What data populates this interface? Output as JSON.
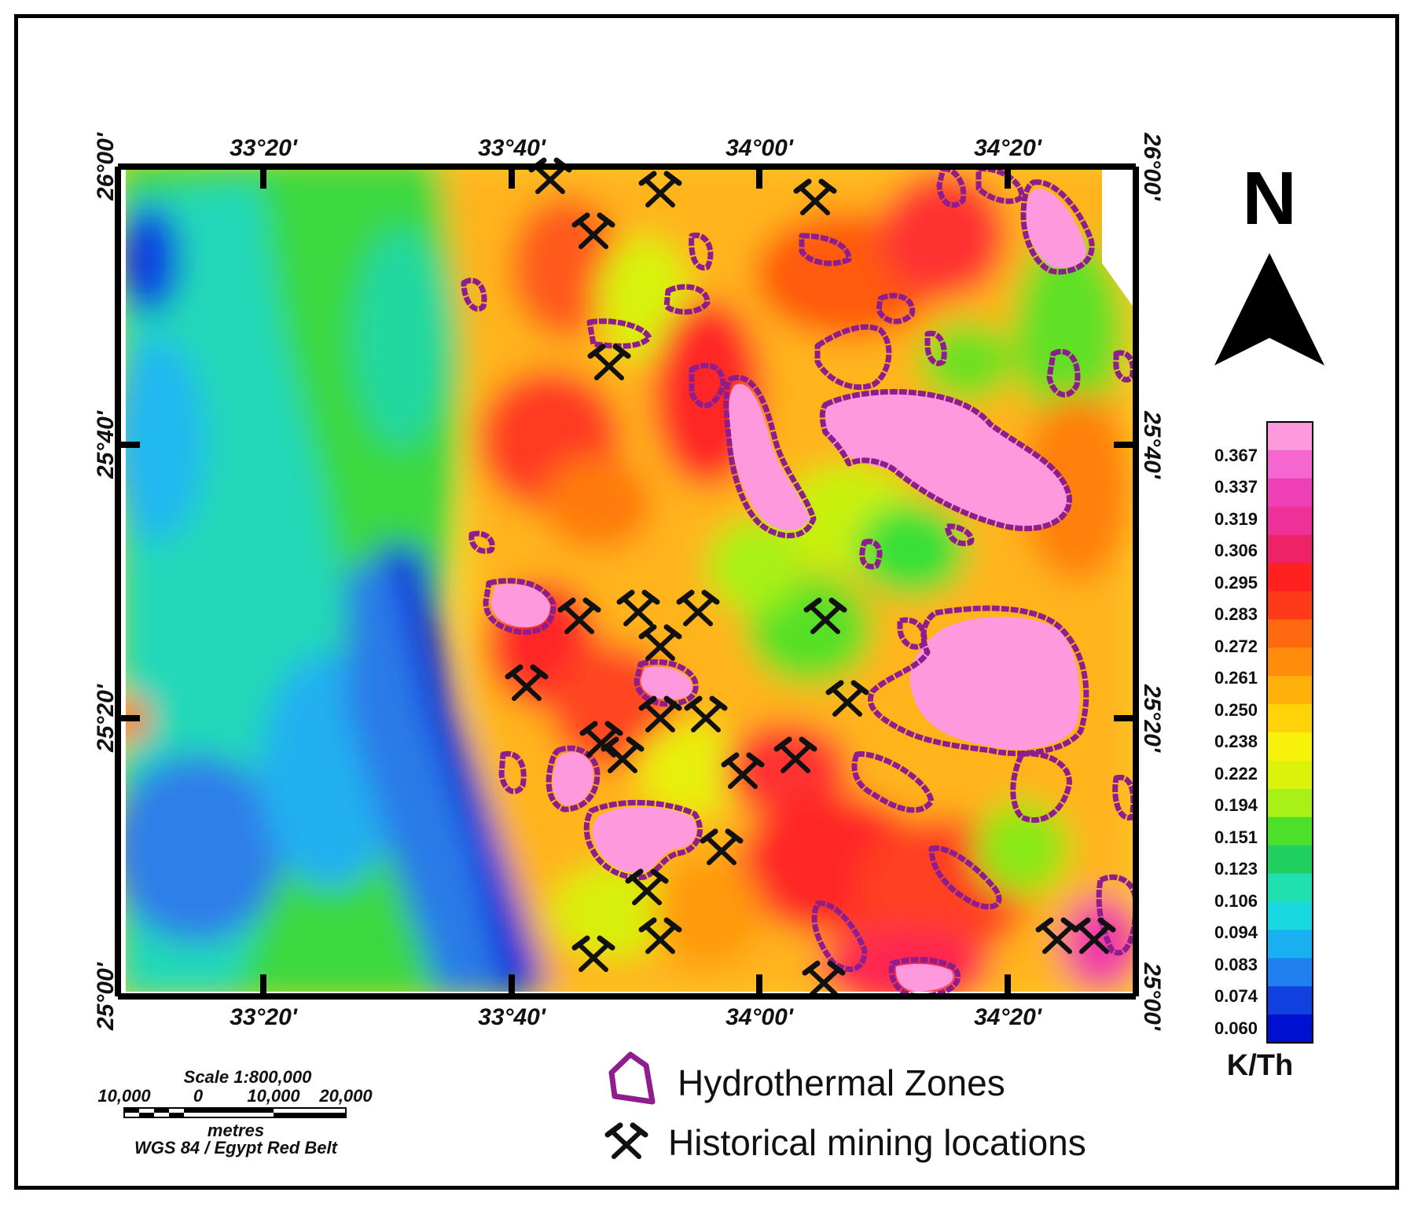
{
  "map": {
    "lon_ticks": [
      "33°20'",
      "33°40'",
      "34°00'",
      "34°20'"
    ],
    "lat_ticks": [
      "26°00'",
      "25°40'",
      "25°20'",
      "25°00'"
    ]
  },
  "north_arrow": {
    "label": "N"
  },
  "colorbar": {
    "title": "K/Th",
    "values": [
      "0.367",
      "0.337",
      "0.319",
      "0.306",
      "0.295",
      "0.283",
      "0.272",
      "0.261",
      "0.250",
      "0.238",
      "0.222",
      "0.194",
      "0.151",
      "0.123",
      "0.106",
      "0.094",
      "0.083",
      "0.074",
      "0.060"
    ],
    "colors": [
      "#ff99dd",
      "#f566d0",
      "#ee3fb6",
      "#ee3099",
      "#ee2266",
      "#ff2020",
      "#ff3a1a",
      "#ff6a10",
      "#ff8c0a",
      "#ffb00a",
      "#ffd20a",
      "#f8f20a",
      "#ddf20a",
      "#a8f018",
      "#4de028",
      "#1fd060",
      "#20e0b0",
      "#1ad8e0",
      "#18b0f0",
      "#2080f0",
      "#1040e0",
      "#0010d0"
    ]
  },
  "scale": {
    "title": "Scale 1:800,000",
    "labels": [
      "10,000",
      "0",
      "10,000",
      "20,000"
    ],
    "units": "metres",
    "projection": "WGS 84 / Egypt Red Belt"
  },
  "key": {
    "zones_label": "Hydrothermal Zones",
    "mining_label": "Historical mining locations",
    "zone_color": "#8e1d8e"
  }
}
